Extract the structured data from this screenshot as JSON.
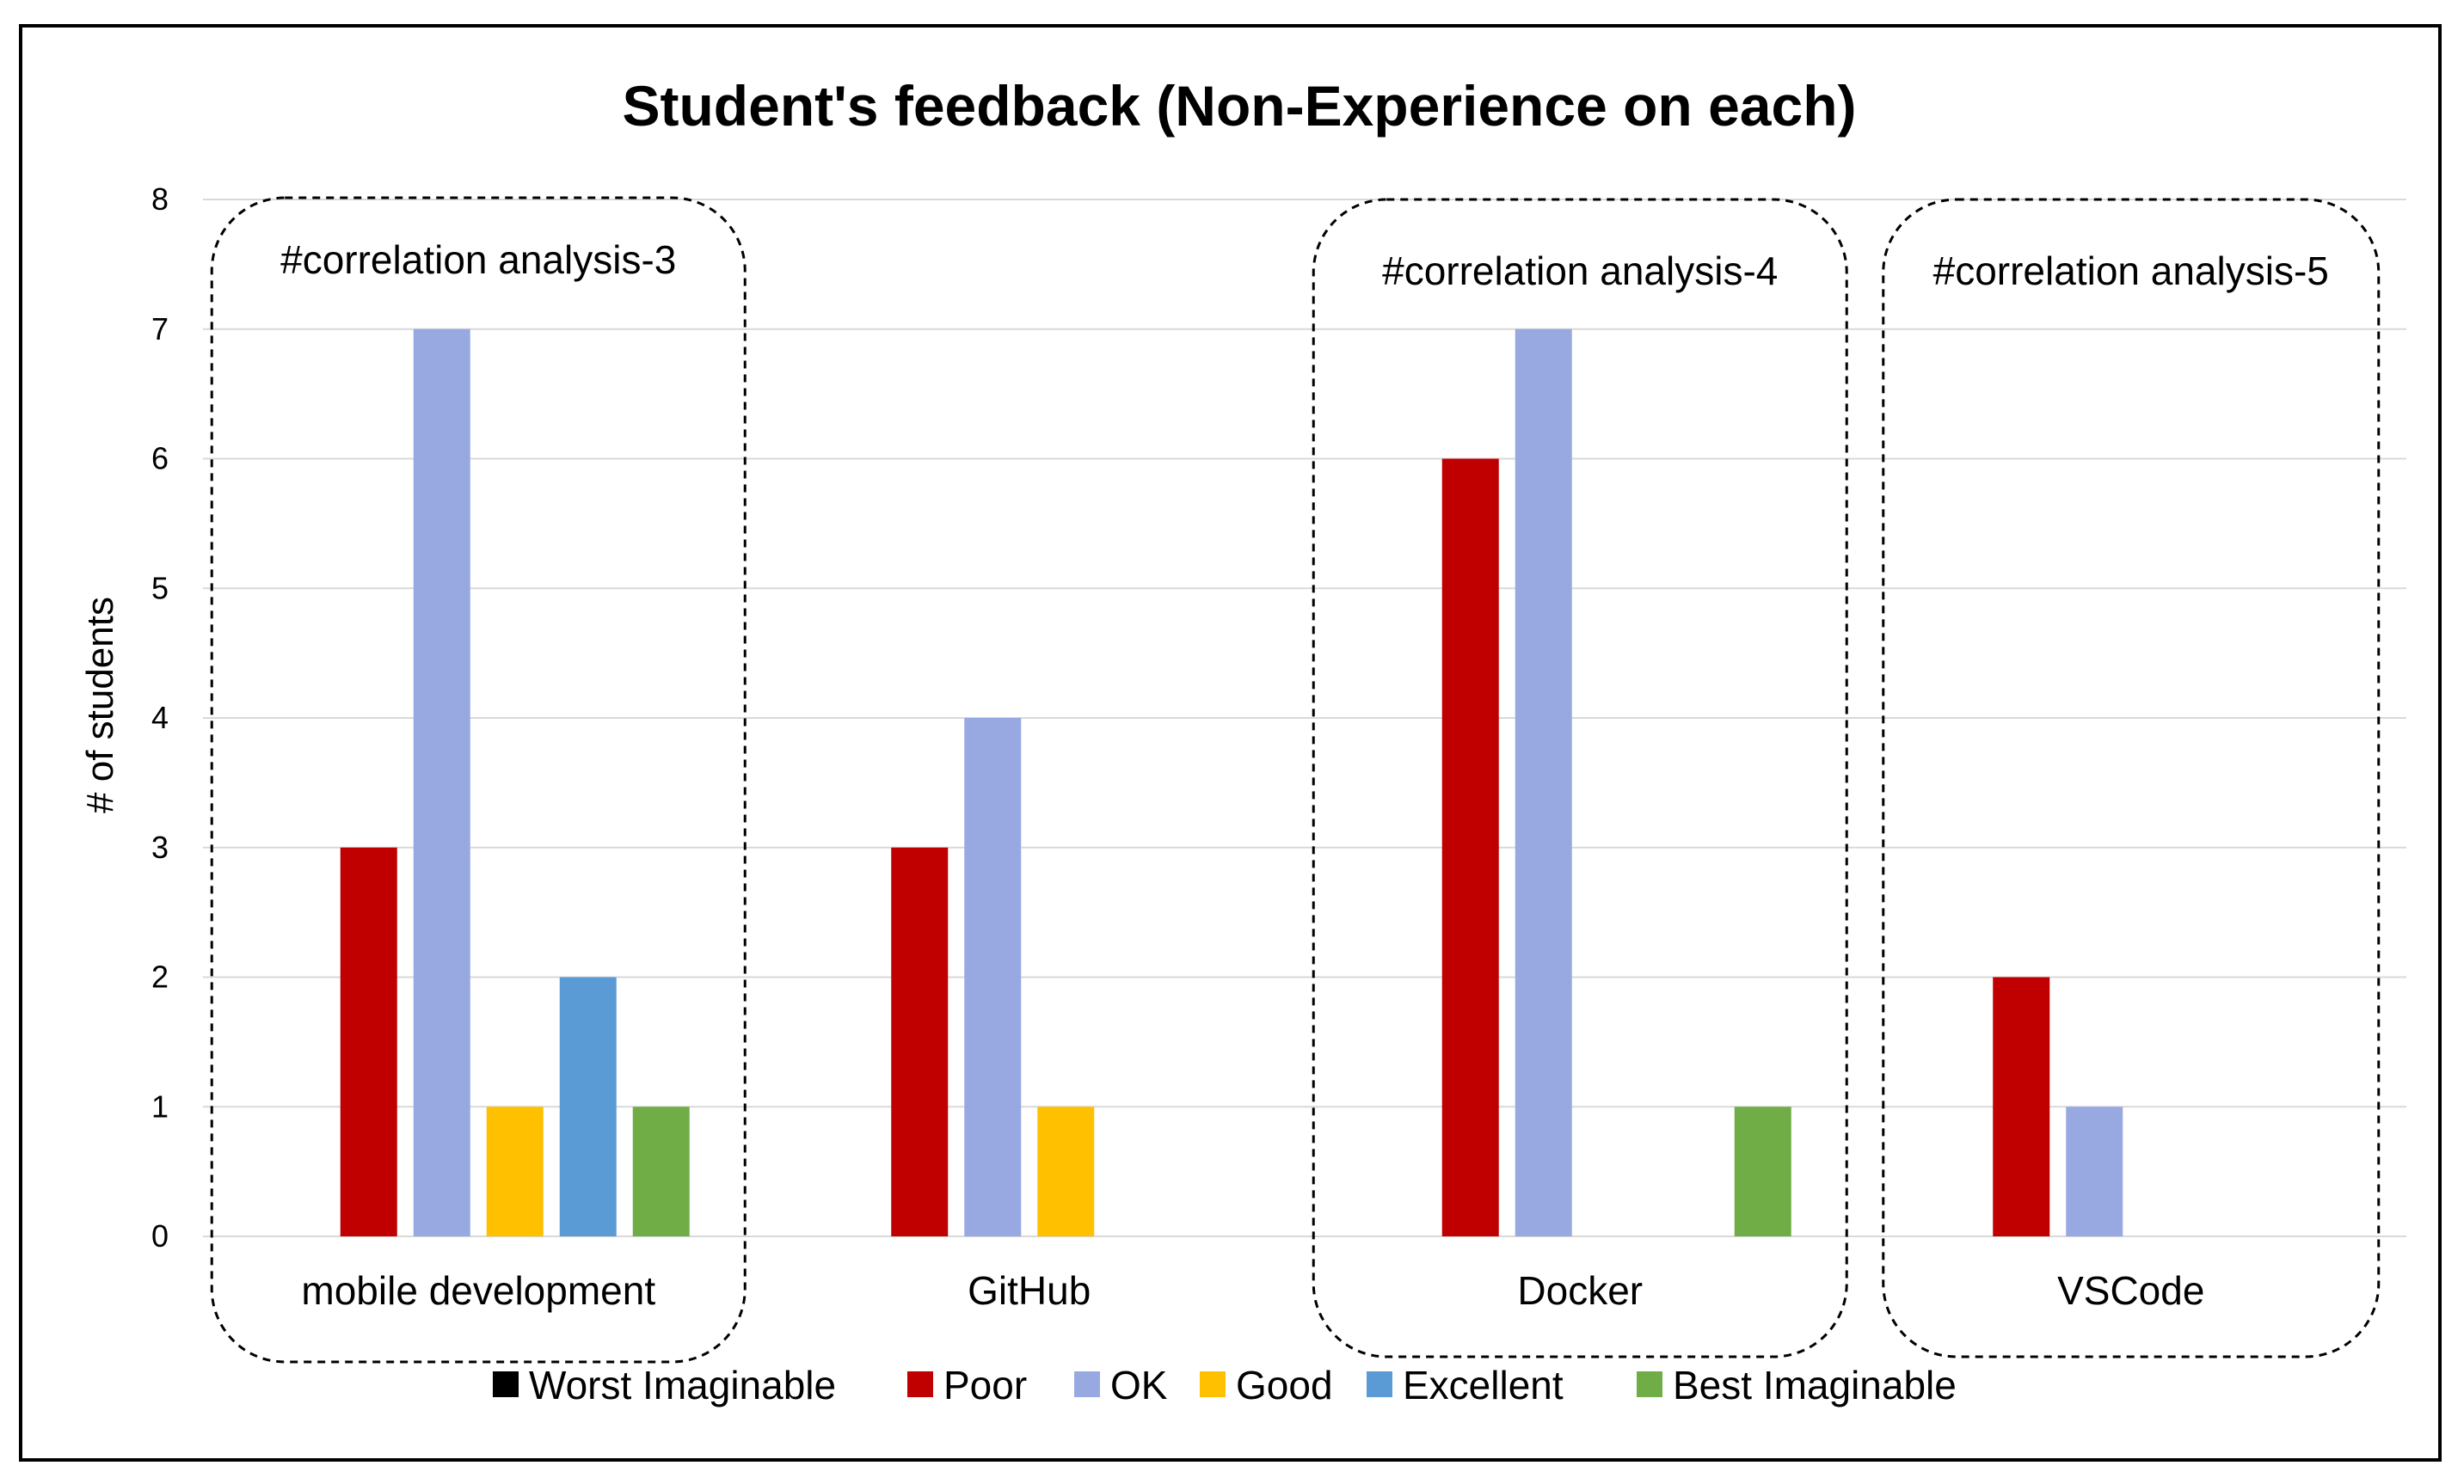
{
  "chart_data": {
    "type": "bar",
    "title": "Student's feedback (Non-Experience on each)",
    "xlabel": "",
    "ylabel": "# of students",
    "ylim": [
      0,
      8
    ],
    "yticks": [
      "0",
      "1",
      "2",
      "3",
      "4",
      "5",
      "6",
      "7",
      "8"
    ],
    "grid": true,
    "legend_position": "bottom",
    "categories": [
      "mobile development",
      "GitHub",
      "Docker",
      "VSCode"
    ],
    "series": [
      {
        "name": "Worst Imaginable",
        "color": "#000000",
        "values": [
          0,
          0,
          0,
          0
        ]
      },
      {
        "name": "Poor",
        "color": "#c00000",
        "values": [
          3,
          3,
          6,
          2
        ]
      },
      {
        "name": "OK",
        "color": "#97a9e0",
        "values": [
          7,
          4,
          7,
          1
        ]
      },
      {
        "name": "Good",
        "color": "#ffc000",
        "values": [
          1,
          1,
          0,
          0
        ]
      },
      {
        "name": "Excellent",
        "color": "#5b9bd5",
        "values": [
          2,
          0,
          0,
          0
        ]
      },
      {
        "name": "Best Imaginable",
        "color": "#70ad47",
        "values": [
          1,
          0,
          1,
          0
        ]
      }
    ],
    "annotations": [
      {
        "text": "#correlation analysis-3",
        "category": "mobile development"
      },
      {
        "text": "#correlation analysis-4",
        "category": "Docker"
      },
      {
        "text": "#correlation analysis-5",
        "category": "VSCode"
      }
    ]
  }
}
